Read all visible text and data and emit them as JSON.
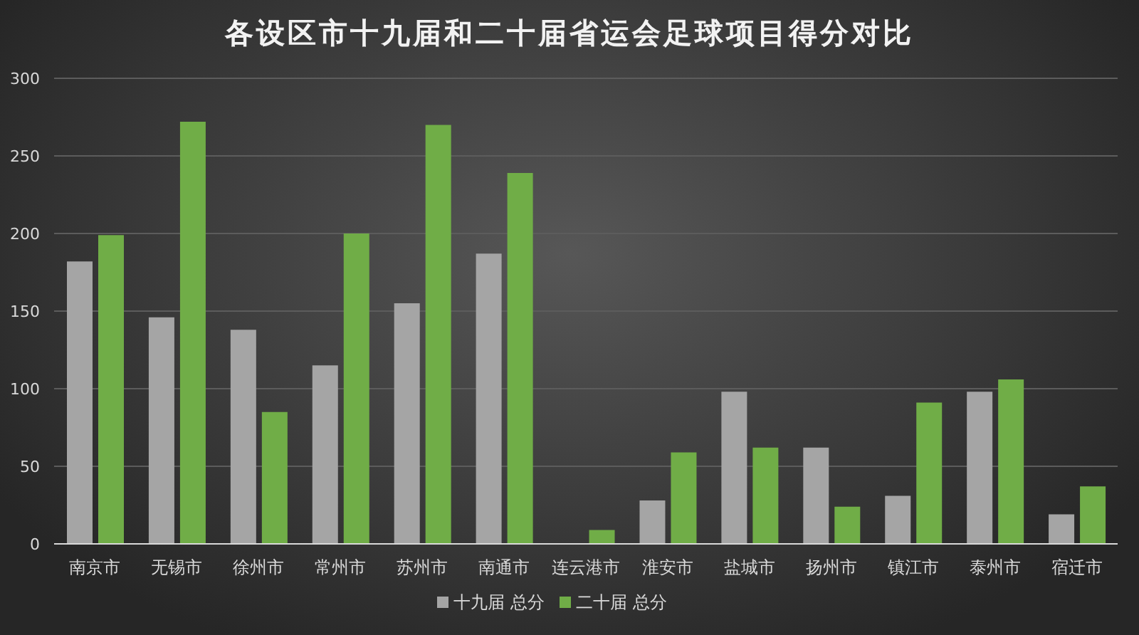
{
  "chart_data": {
    "type": "bar",
    "title": "各设区市十九届和二十届省运会足球项目得分对比",
    "categories": [
      "南京市",
      "无锡市",
      "徐州市",
      "常州市",
      "苏州市",
      "南通市",
      "连云港市",
      "淮安市",
      "盐城市",
      "扬州市",
      "镇江市",
      "泰州市",
      "宿迁市"
    ],
    "series": [
      {
        "name": "十九届 总分",
        "color": "#a5a5a5",
        "values": [
          182,
          146,
          138,
          115,
          155,
          187,
          null,
          28,
          98,
          62,
          31,
          98,
          19
        ]
      },
      {
        "name": "二十届 总分",
        "color": "#70ad47",
        "values": [
          199,
          272,
          85,
          200,
          270,
          239,
          9,
          59,
          62,
          24,
          91,
          106,
          37
        ]
      }
    ],
    "ylim": [
      0,
      300
    ],
    "yticks": [
      0,
      50,
      100,
      150,
      200,
      250,
      300
    ],
    "grid": "y",
    "legend": "bottom"
  }
}
